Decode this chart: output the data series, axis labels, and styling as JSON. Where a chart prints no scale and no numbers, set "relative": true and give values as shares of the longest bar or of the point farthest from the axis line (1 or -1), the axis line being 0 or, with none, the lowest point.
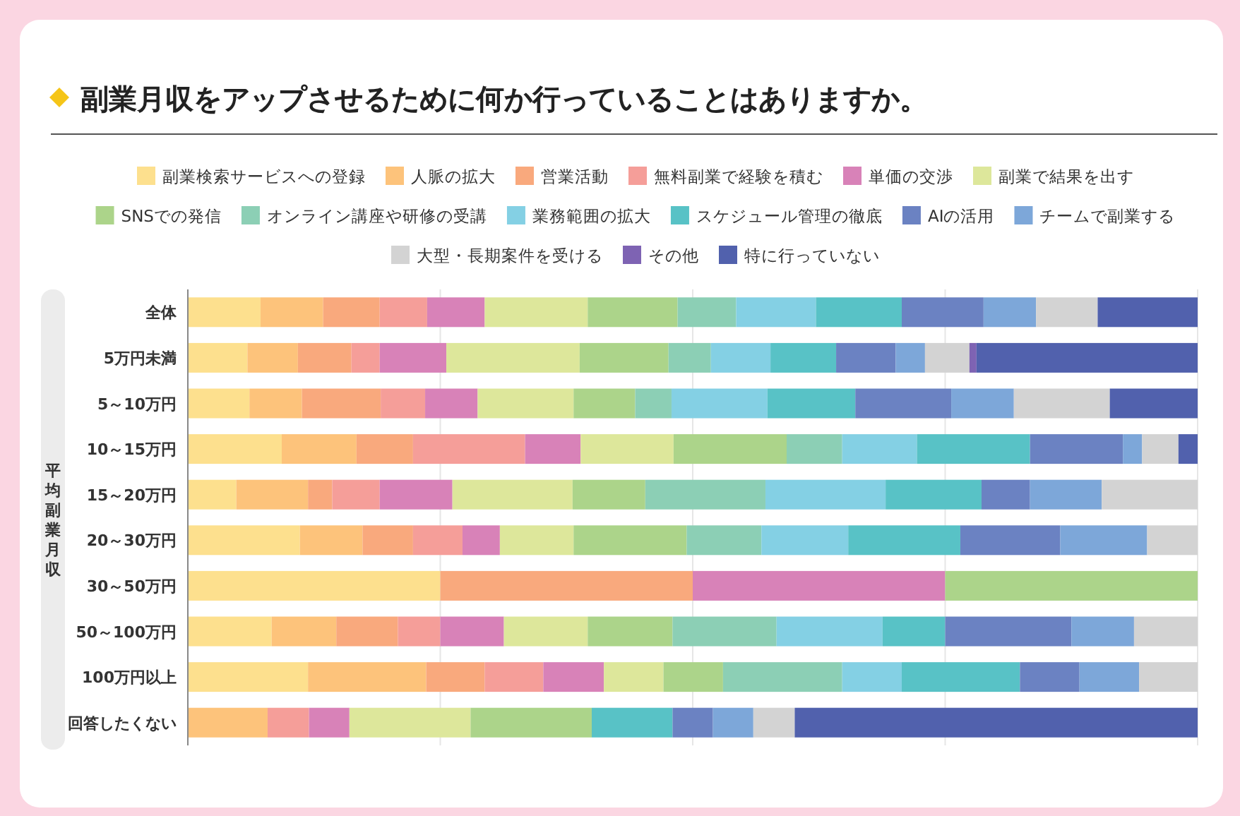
{
  "chart_data": {
    "type": "bar",
    "orientation": "horizontal",
    "stacked": true,
    "relative": true,
    "title": "副業月収をアップさせるために何か行っていることはありますか。",
    "ylabel": "平均副業月収",
    "legend": "top",
    "grid": "x",
    "categories": [
      "全体",
      "5万円未満",
      "5～10万円",
      "10～15万円",
      "15～20万円",
      "20～30万円",
      "30～50万円",
      "50～100万円",
      "100万円以上",
      "回答したくない"
    ],
    "series": [
      {
        "name": "副業検索サービスへの登録",
        "color": "#fde08e",
        "values": [
          0.072,
          0.059,
          0.061,
          0.093,
          0.048,
          0.111,
          0.25,
          0.083,
          0.119,
          0
        ]
      },
      {
        "name": "人脈の拡大",
        "color": "#fdc37b",
        "values": [
          0.062,
          0.05,
          0.052,
          0.074,
          0.071,
          0.062,
          0,
          0.064,
          0.117,
          0.079
        ]
      },
      {
        "name": "営業活動",
        "color": "#f9a97d",
        "values": [
          0.056,
          0.053,
          0.078,
          0.056,
          0.024,
          0.05,
          0.25,
          0.061,
          0.058,
          0
        ]
      },
      {
        "name": "無料副業で経験を積む",
        "color": "#f59e99",
        "values": [
          0.047,
          0.028,
          0.044,
          0.111,
          0.047,
          0.049,
          0,
          0.042,
          0.058,
          0.041
        ]
      },
      {
        "name": "単価の交渉",
        "color": "#d882b8",
        "values": [
          0.057,
          0.066,
          0.052,
          0.055,
          0.072,
          0.037,
          0.25,
          0.063,
          0.06,
          0.04
        ]
      },
      {
        "name": "副業で結果を出す",
        "color": "#dde79b",
        "values": [
          0.102,
          0.132,
          0.095,
          0.092,
          0.119,
          0.073,
          0,
          0.083,
          0.059,
          0.12
        ]
      },
      {
        "name": "SNSでの発信",
        "color": "#acd48a",
        "values": [
          0.089,
          0.088,
          0.061,
          0.112,
          0.072,
          0.112,
          0.25,
          0.084,
          0.059,
          0.12
        ]
      },
      {
        "name": "オンライン講座や研修の受講",
        "color": "#8ccfb5",
        "values": [
          0.058,
          0.042,
          0.036,
          0.055,
          0.119,
          0.074,
          0,
          0.103,
          0.118,
          0
        ]
      },
      {
        "name": "業務範囲の拡大",
        "color": "#84d0e4",
        "values": [
          0.079,
          0.059,
          0.095,
          0.074,
          0.119,
          0.086,
          0,
          0.105,
          0.059,
          0
        ]
      },
      {
        "name": "スケジュール管理の徹底",
        "color": "#58c2c6",
        "values": [
          0.085,
          0.065,
          0.087,
          0.112,
          0.095,
          0.111,
          0,
          0.062,
          0.117,
          0.08
        ]
      },
      {
        "name": "AIの活用",
        "color": "#6b82c2",
        "values": [
          0.081,
          0.059,
          0.095,
          0.092,
          0.048,
          0.099,
          0,
          0.125,
          0.059,
          0.04
        ]
      },
      {
        "name": "チームで副業する",
        "color": "#7da7d9",
        "values": [
          0.052,
          0.029,
          0.062,
          0.019,
          0.071,
          0.086,
          0,
          0.062,
          0.059,
          0.04
        ]
      },
      {
        "name": "大型・長期案件を受ける",
        "color": "#d3d3d3",
        "values": [
          0.061,
          0.044,
          0.095,
          0.036,
          0.095,
          0.05,
          0,
          0.063,
          0.058,
          0.041
        ]
      },
      {
        "name": "その他",
        "color": "#7e63b3",
        "values": [
          0,
          0.007,
          0,
          0,
          0,
          0,
          0,
          0,
          0,
          0
        ]
      },
      {
        "name": "特に行っていない",
        "color": "#5161ad",
        "values": [
          0.099,
          0.219,
          0.087,
          0.019,
          0,
          0,
          0,
          0,
          0,
          0.399
        ]
      }
    ]
  }
}
